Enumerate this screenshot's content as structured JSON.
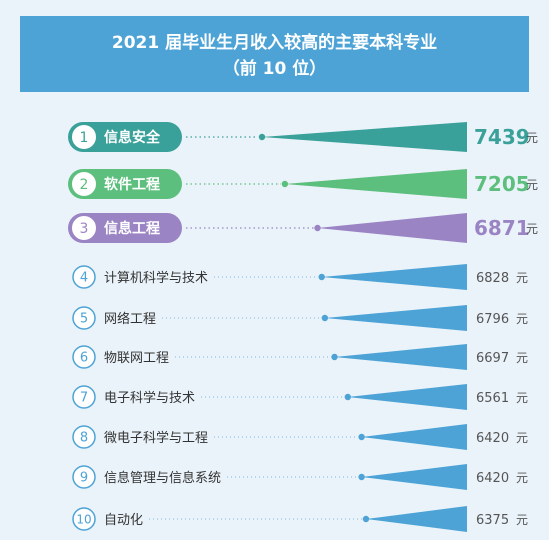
{
  "header": {
    "title": "2021 届毕业生月收入较高的主要本科专业",
    "subtitle": "（前 10 位）"
  },
  "chart_data": {
    "type": "bar",
    "title": "2021 届毕业生月收入较高的主要本科专业",
    "subtitle": "（前 10 位）",
    "unit": "元",
    "categories": [
      "信息安全",
      "软件工程",
      "信息工程",
      "计算机科学与技术",
      "网络工程",
      "物联网工程",
      "电子科学与技术",
      "微电子科学与工程",
      "信息管理与信息系统",
      "自动化"
    ],
    "ranks": [
      "1",
      "2",
      "3",
      "4",
      "5",
      "6",
      "7",
      "8",
      "9",
      "10"
    ],
    "values": [
      7439,
      7205,
      6871,
      6828,
      6796,
      6697,
      6561,
      6420,
      6420,
      6375
    ],
    "value_labels": [
      "7439",
      "7205",
      "6871",
      "6828",
      "6796",
      "6697",
      "6561",
      "6420",
      "6420",
      "6375"
    ],
    "colors": {
      "rank1": "#3aa19a",
      "rank2": "#5cbf7d",
      "rank3": "#9b84c4",
      "others": "#4da3d6",
      "header": "#4da3d6",
      "background": "#eaf3fa"
    }
  }
}
